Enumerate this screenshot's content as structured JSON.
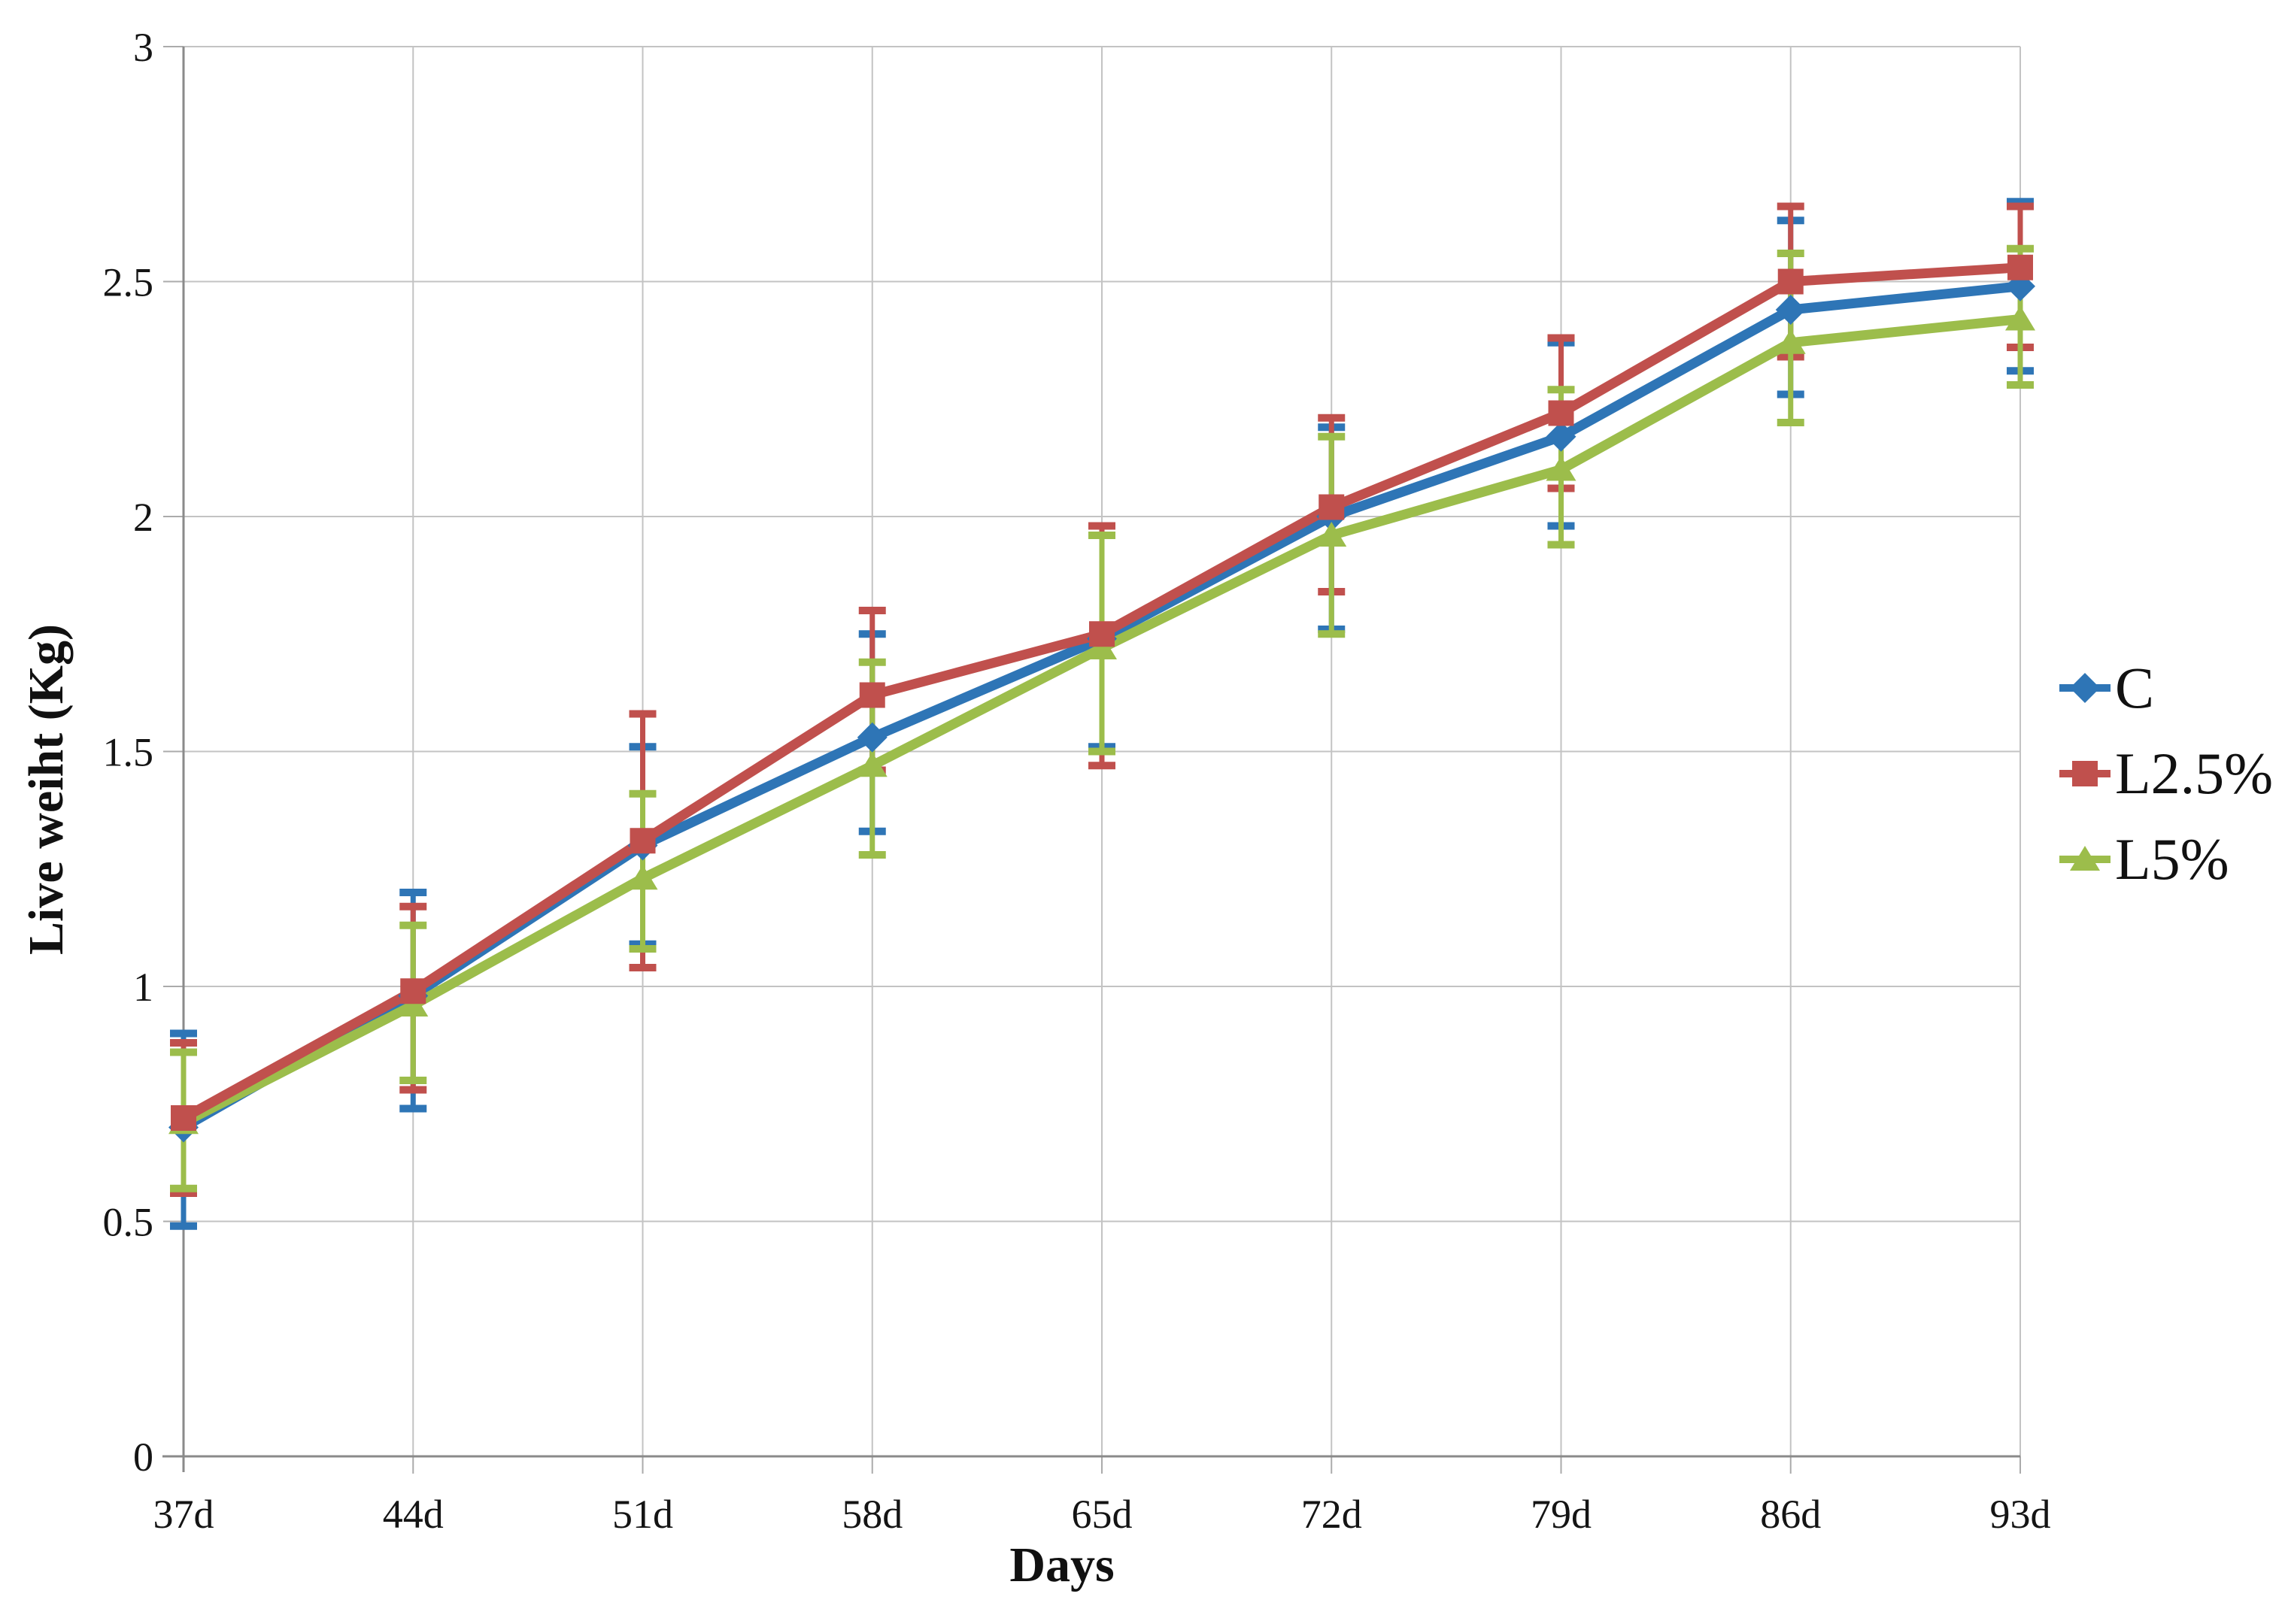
{
  "figure": {
    "background": "#ffffff"
  },
  "chart_data": {
    "type": "line",
    "title": "",
    "xlabel": "Days",
    "ylabel": "Live weiht (Kg)",
    "categories": [
      "37d",
      "44d",
      "51d",
      "58d",
      "65d",
      "72d",
      "79d",
      "86d",
      "93d"
    ],
    "ylim": [
      0,
      3
    ],
    "yticks": [
      0,
      0.5,
      1,
      1.5,
      2,
      2.5,
      3
    ],
    "grid": true,
    "legend_position": "right",
    "error_bars": true,
    "colors": {
      "grid": "#C3C3C3",
      "axis": "#8A8A8A",
      "tick": "#ABABAB",
      "text": "#141414"
    },
    "series": [
      {
        "name": "C",
        "color": "#2E75B6",
        "marker": "diamond",
        "values": [
          0.7,
          0.98,
          1.3,
          1.53,
          1.74,
          2.0,
          2.17,
          2.44,
          2.49
        ],
        "err_upper": [
          0.9,
          1.2,
          1.51,
          1.75,
          1.96,
          2.19,
          2.37,
          2.63,
          2.67
        ],
        "err_lower": [
          0.49,
          0.74,
          1.09,
          1.33,
          1.51,
          1.76,
          1.98,
          2.26,
          2.31
        ]
      },
      {
        "name": "L2.5%",
        "color": "#C0504D",
        "marker": "square",
        "values": [
          0.72,
          0.99,
          1.31,
          1.62,
          1.75,
          2.02,
          2.22,
          2.5,
          2.53
        ],
        "err_upper": [
          0.88,
          1.17,
          1.58,
          1.8,
          1.98,
          2.21,
          2.38,
          2.66,
          2.66
        ],
        "err_lower": [
          0.56,
          0.78,
          1.04,
          1.46,
          1.47,
          1.84,
          2.06,
          2.34,
          2.36
        ]
      },
      {
        "name": "L5%",
        "color": "#9CBD4B",
        "marker": "triangle",
        "values": [
          0.71,
          0.96,
          1.23,
          1.47,
          1.72,
          1.96,
          2.1,
          2.37,
          2.42
        ],
        "err_upper": [
          0.86,
          1.13,
          1.41,
          1.69,
          1.96,
          2.17,
          2.27,
          2.56,
          2.57
        ],
        "err_lower": [
          0.57,
          0.8,
          1.08,
          1.28,
          1.5,
          1.75,
          1.94,
          2.2,
          2.28
        ]
      }
    ]
  }
}
